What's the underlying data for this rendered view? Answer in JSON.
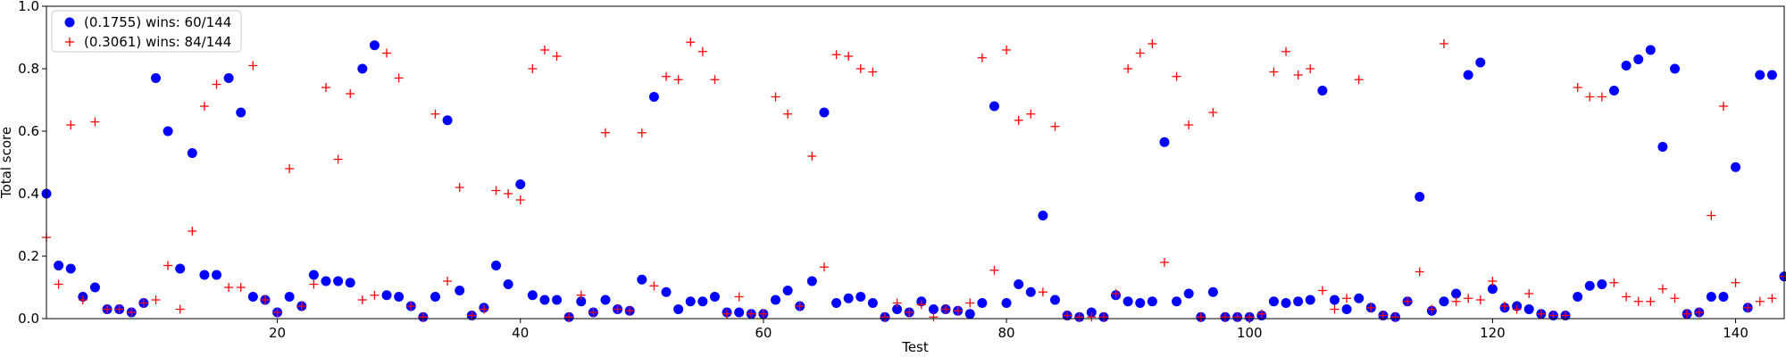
{
  "chart_data": {
    "type": "scatter",
    "xlabel": "Test",
    "ylabel": "Total score",
    "xlim": [
      1,
      144
    ],
    "ylim": [
      0.0,
      1.0
    ],
    "xticks": [
      20,
      40,
      60,
      80,
      100,
      120,
      140
    ],
    "xtick_labels": [
      "20",
      "40",
      "60",
      "80",
      "100",
      "120",
      "140"
    ],
    "yticks": [
      0.0,
      0.2,
      0.4,
      0.6,
      0.8,
      1.0
    ],
    "ytick_labels": [
      "0.0",
      "0.2",
      "0.4",
      "0.6",
      "0.8",
      "1.0"
    ],
    "grid": false,
    "legend_position": "top-left",
    "series": [
      {
        "name": "(0.1755) wins: 60/144",
        "color": "#0000ff",
        "marker": "circle",
        "x": [
          1,
          2,
          3,
          4,
          5,
          6,
          7,
          8,
          9,
          10,
          11,
          12,
          13,
          14,
          15,
          16,
          17,
          18,
          19,
          20,
          21,
          22,
          23,
          24,
          25,
          26,
          27,
          28,
          29,
          30,
          31,
          32,
          33,
          34,
          35,
          36,
          37,
          38,
          39,
          40,
          41,
          42,
          43,
          44,
          45,
          46,
          47,
          48,
          49,
          50,
          51,
          52,
          53,
          54,
          55,
          56,
          57,
          58,
          59,
          60,
          61,
          62,
          63,
          64,
          65,
          66,
          67,
          68,
          69,
          70,
          71,
          72,
          73,
          74,
          75,
          76,
          77,
          78,
          79,
          80,
          81,
          82,
          83,
          84,
          85,
          86,
          87,
          88,
          89,
          90,
          91,
          92,
          93,
          94,
          95,
          96,
          97,
          98,
          99,
          100,
          101,
          102,
          103,
          104,
          105,
          106,
          107,
          108,
          109,
          110,
          111,
          112,
          113,
          114,
          115,
          116,
          117,
          118,
          119,
          120,
          121,
          122,
          123,
          124,
          125,
          126,
          127,
          128,
          129,
          130,
          131,
          132,
          133,
          134,
          135,
          136,
          137,
          138,
          139,
          140,
          141,
          142,
          143,
          144
        ],
        "y": [
          0.4,
          0.17,
          0.16,
          0.07,
          0.1,
          0.03,
          0.03,
          0.02,
          0.05,
          0.77,
          0.6,
          0.16,
          0.53,
          0.14,
          0.14,
          0.77,
          0.66,
          0.07,
          0.06,
          0.02,
          0.07,
          0.04,
          0.14,
          0.12,
          0.12,
          0.115,
          0.8,
          0.875,
          0.075,
          0.07,
          0.04,
          0.005,
          0.07,
          0.635,
          0.09,
          0.01,
          0.035,
          0.17,
          0.11,
          0.43,
          0.075,
          0.06,
          0.06,
          0.005,
          0.055,
          0.02,
          0.06,
          0.03,
          0.025,
          0.125,
          0.71,
          0.085,
          0.03,
          0.055,
          0.055,
          0.07,
          0.02,
          0.02,
          0.015,
          0.015,
          0.06,
          0.09,
          0.04,
          0.12,
          0.66,
          0.05,
          0.065,
          0.07,
          0.05,
          0.005,
          0.03,
          0.02,
          0.055,
          0.03,
          0.03,
          0.025,
          0.015,
          0.05,
          0.68,
          0.05,
          0.11,
          0.085,
          0.33,
          0.06,
          0.01,
          0.005,
          0.02,
          0.005,
          0.075,
          0.055,
          0.05,
          0.055,
          0.565,
          0.055,
          0.08,
          0.005,
          0.085,
          0.005,
          0.005,
          0.005,
          0.01,
          0.055,
          0.05,
          0.055,
          0.06,
          0.73,
          0.06,
          0.03,
          0.065,
          0.035,
          0.01,
          0.005,
          0.055,
          0.39,
          0.025,
          0.055,
          0.08,
          0.78,
          0.82,
          0.095,
          0.035,
          0.04,
          0.03,
          0.015,
          0.01,
          0.01,
          0.07,
          0.105,
          0.11,
          0.73,
          0.81,
          0.83,
          0.86,
          0.55,
          0.8,
          0.015,
          0.02,
          0.07,
          0.07,
          0.485,
          0.035,
          0.78,
          0.78,
          0.135
        ]
      },
      {
        "name": "(0.3061) wins: 84/144",
        "color": "#ff0000",
        "marker": "plus",
        "x": [
          1,
          2,
          3,
          4,
          5,
          6,
          7,
          8,
          9,
          10,
          11,
          12,
          13,
          14,
          15,
          16,
          17,
          18,
          19,
          20,
          21,
          22,
          23,
          24,
          25,
          26,
          27,
          28,
          29,
          30,
          31,
          32,
          33,
          34,
          35,
          36,
          37,
          38,
          39,
          40,
          41,
          42,
          43,
          44,
          45,
          46,
          47,
          48,
          49,
          50,
          51,
          52,
          53,
          54,
          55,
          56,
          57,
          58,
          59,
          60,
          61,
          62,
          63,
          64,
          65,
          66,
          67,
          68,
          69,
          70,
          71,
          72,
          73,
          74,
          75,
          76,
          77,
          78,
          79,
          80,
          81,
          82,
          83,
          84,
          85,
          86,
          87,
          88,
          89,
          90,
          91,
          92,
          93,
          94,
          95,
          96,
          97,
          98,
          99,
          100,
          101,
          102,
          103,
          104,
          105,
          106,
          107,
          108,
          109,
          110,
          111,
          112,
          113,
          114,
          115,
          116,
          117,
          118,
          119,
          120,
          121,
          122,
          123,
          124,
          125,
          126,
          127,
          128,
          129,
          130,
          131,
          132,
          133,
          134,
          135,
          136,
          137,
          138,
          139,
          140,
          141,
          142,
          143,
          144
        ],
        "y": [
          0.26,
          0.11,
          0.62,
          0.06,
          0.63,
          0.03,
          0.03,
          0.02,
          0.05,
          0.06,
          0.17,
          0.03,
          0.28,
          0.68,
          0.75,
          0.1,
          0.1,
          0.81,
          0.06,
          0.02,
          0.48,
          0.04,
          0.11,
          0.74,
          0.51,
          0.72,
          0.06,
          0.075,
          0.85,
          0.77,
          0.04,
          0.005,
          0.655,
          0.12,
          0.42,
          0.01,
          0.03,
          0.41,
          0.4,
          0.38,
          0.8,
          0.86,
          0.84,
          0.005,
          0.075,
          0.02,
          0.595,
          0.03,
          0.025,
          0.595,
          0.105,
          0.775,
          0.765,
          0.885,
          0.855,
          0.765,
          0.015,
          0.07,
          0.015,
          0.015,
          0.71,
          0.655,
          0.04,
          0.52,
          0.165,
          0.845,
          0.84,
          0.8,
          0.79,
          0.005,
          0.05,
          0.02,
          0.045,
          0.005,
          0.03,
          0.025,
          0.05,
          0.835,
          0.155,
          0.86,
          0.635,
          0.655,
          0.085,
          0.615,
          0.01,
          0.005,
          0.005,
          0.005,
          0.08,
          0.8,
          0.85,
          0.88,
          0.18,
          0.775,
          0.62,
          0.005,
          0.66,
          0.005,
          0.005,
          0.005,
          0.015,
          0.79,
          0.855,
          0.78,
          0.8,
          0.09,
          0.03,
          0.065,
          0.765,
          0.035,
          0.01,
          0.005,
          0.055,
          0.15,
          0.03,
          0.88,
          0.055,
          0.065,
          0.06,
          0.12,
          0.04,
          0.03,
          0.08,
          0.015,
          0.01,
          0.01,
          0.74,
          0.71,
          0.71,
          0.115,
          0.07,
          0.055,
          0.055,
          0.095,
          0.065,
          0.015,
          0.02,
          0.33,
          0.68,
          0.115,
          0.035,
          0.055,
          0.065,
          0.135
        ]
      }
    ]
  }
}
